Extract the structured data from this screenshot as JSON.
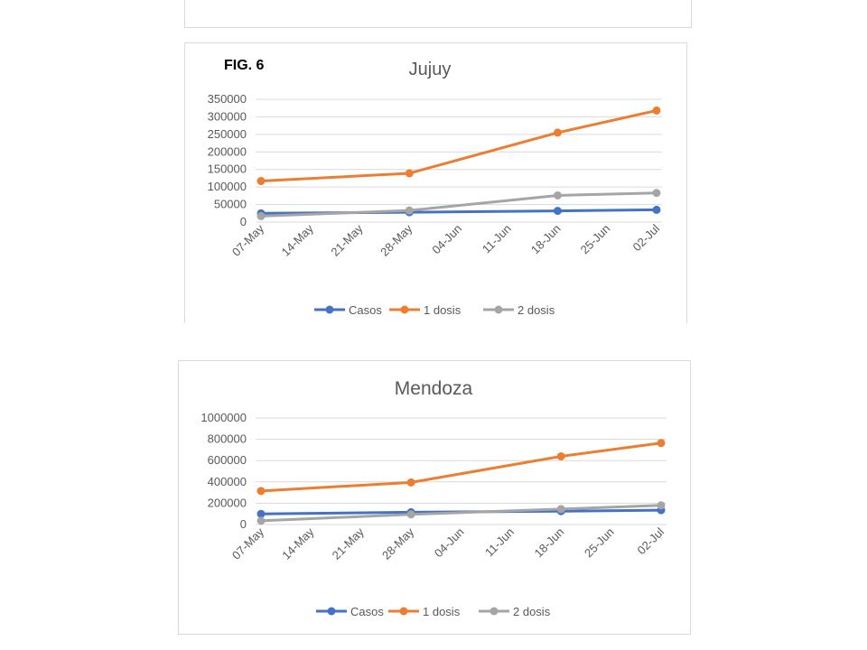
{
  "figure_label": "FIG. 6",
  "chart_data": [
    {
      "type": "line",
      "title": "Jujuy",
      "xlabel": "",
      "ylabel": "",
      "x_ticks": [
        "07-May",
        "14-May",
        "21-May",
        "28-May",
        "04-Jun",
        "11-Jun",
        "18-Jun",
        "25-Jun",
        "02-Jul"
      ],
      "x": [
        "07-May",
        "28-May",
        "18-Jun",
        "02-Jul"
      ],
      "y_ticks": [
        "0",
        "50000",
        "100000",
        "150000",
        "200000",
        "250000",
        "300000",
        "350000"
      ],
      "ylim": [
        0,
        350000
      ],
      "grid": true,
      "legend_position": "bottom",
      "series": [
        {
          "name": "Casos",
          "color": "#4472c4",
          "values": [
            25000,
            28000,
            32000,
            35000
          ]
        },
        {
          "name": "1 dosis",
          "color": "#ed7d31",
          "values": [
            117000,
            139000,
            255000,
            318000
          ]
        },
        {
          "name": "2 dosis",
          "color": "#a5a5a5",
          "values": [
            17000,
            33000,
            76000,
            83000
          ]
        }
      ]
    },
    {
      "type": "line",
      "title": "Mendoza",
      "xlabel": "",
      "ylabel": "",
      "x_ticks": [
        "07-May",
        "14-May",
        "21-May",
        "28-May",
        "04-Jun",
        "11-Jun",
        "18-Jun",
        "25-Jun",
        "02-Jul"
      ],
      "x": [
        "07-May",
        "28-May",
        "18-Jun",
        "02-Jul"
      ],
      "y_ticks": [
        "0",
        "200000",
        "400000",
        "600000",
        "800000",
        "1000000"
      ],
      "ylim": [
        0,
        1000000
      ],
      "grid": true,
      "legend_position": "bottom",
      "series": [
        {
          "name": "Casos",
          "color": "#4472c4",
          "values": [
            100000,
            115000,
            125000,
            135000
          ]
        },
        {
          "name": "1 dosis",
          "color": "#ed7d31",
          "values": [
            315000,
            395000,
            640000,
            765000
          ]
        },
        {
          "name": "2 dosis",
          "color": "#a5a5a5",
          "values": [
            35000,
            95000,
            145000,
            180000
          ]
        }
      ]
    }
  ]
}
